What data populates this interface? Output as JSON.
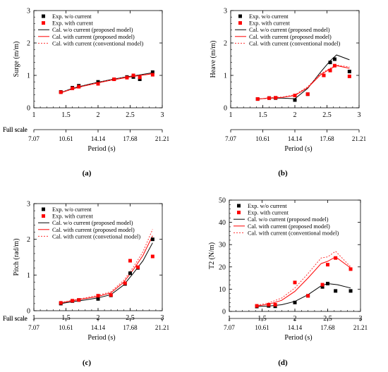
{
  "chart_data": [
    {
      "type": "scatter",
      "panel": "(a)",
      "ylabel": "Surge (m/m)",
      "xlabel": "Period (s)",
      "xlim": [
        1,
        3
      ],
      "ylim": [
        0,
        3
      ],
      "xticks": [
        "1",
        "1.5",
        "2",
        "2.5",
        "3"
      ],
      "yticks": [
        "0",
        "1",
        "2",
        "3"
      ],
      "fullscale_label": "Full scale",
      "fullscale_ticks": [
        "7.07",
        "10.61",
        "14.14",
        "17.68",
        "21.21"
      ],
      "legend": "top-left",
      "series": [
        {
          "name": "Exp. w/o current",
          "kind": "square",
          "color": "#000000",
          "x": [
            1.42,
            1.6,
            1.7,
            2.0,
            2.25,
            2.45,
            2.55,
            2.65,
            2.85
          ],
          "y": [
            0.49,
            0.62,
            0.68,
            0.8,
            0.88,
            0.95,
            0.95,
            0.88,
            1.1
          ]
        },
        {
          "name": "Exp. with current",
          "kind": "square",
          "color": "#ff0000",
          "x": [
            1.42,
            1.6,
            1.7,
            2.0,
            2.25,
            2.45,
            2.55,
            2.65,
            2.85
          ],
          "y": [
            0.48,
            0.6,
            0.65,
            0.74,
            0.88,
            0.93,
            1.0,
            0.94,
            1.02
          ]
        },
        {
          "name": "Cal. w/o current (proposed model)",
          "kind": "line",
          "color": "#000000",
          "dash": "",
          "x": [
            1.42,
            1.6,
            1.8,
            2.0,
            2.2,
            2.4,
            2.6,
            2.85
          ],
          "y": [
            0.47,
            0.6,
            0.7,
            0.79,
            0.87,
            0.94,
            1.0,
            1.08
          ]
        },
        {
          "name": "Cal. with current (proposed model)",
          "kind": "line",
          "color": "#ff0000",
          "dash": "",
          "x": [
            1.42,
            1.6,
            1.8,
            2.0,
            2.2,
            2.4,
            2.6,
            2.85
          ],
          "y": [
            0.46,
            0.58,
            0.68,
            0.77,
            0.85,
            0.92,
            0.98,
            1.05
          ]
        },
        {
          "name": "Cal. with current (conventional model)",
          "kind": "line",
          "color": "#ff3333",
          "dash": "2,2",
          "x": [
            1.42,
            1.6,
            1.8,
            2.0,
            2.2,
            2.4,
            2.6,
            2.85
          ],
          "y": [
            0.47,
            0.59,
            0.69,
            0.78,
            0.86,
            0.93,
            0.99,
            1.06
          ]
        }
      ],
      "caption": "(a)"
    },
    {
      "type": "scatter",
      "panel": "(b)",
      "ylabel": "Heave (m/m)",
      "xlabel": "Period (s)",
      "xlim": [
        1,
        3
      ],
      "ylim": [
        0,
        3
      ],
      "xticks": [
        "1",
        "1.5",
        "2",
        "2.5",
        "3"
      ],
      "yticks": [
        "0",
        "1",
        "2",
        "3"
      ],
      "fullscale_label": "Full scale",
      "fullscale_ticks": [
        "7.07",
        "10.61",
        "14.14",
        "17.68",
        "21.21"
      ],
      "legend": "top-left",
      "series": [
        {
          "name": "Exp. w/o current",
          "kind": "square",
          "color": "#000000",
          "x": [
            1.42,
            1.6,
            1.7,
            2.0,
            2.2,
            2.45,
            2.55,
            2.62,
            2.85
          ],
          "y": [
            0.27,
            0.3,
            0.3,
            0.24,
            0.42,
            1.0,
            1.4,
            1.5,
            1.12
          ]
        },
        {
          "name": "Exp. with current",
          "kind": "square",
          "color": "#ff0000",
          "x": [
            1.42,
            1.6,
            1.7,
            2.0,
            2.2,
            2.45,
            2.55,
            2.62,
            2.85
          ],
          "y": [
            0.27,
            0.3,
            0.31,
            0.38,
            0.42,
            1.0,
            1.15,
            1.3,
            0.97
          ]
        },
        {
          "name": "Cal. w/o current (proposed model)",
          "kind": "line",
          "color": "#000000",
          "dash": "",
          "x": [
            1.42,
            1.6,
            1.8,
            2.0,
            2.2,
            2.4,
            2.55,
            2.65,
            2.85
          ],
          "y": [
            0.27,
            0.3,
            0.3,
            0.28,
            0.6,
            1.1,
            1.45,
            1.63,
            1.48
          ]
        },
        {
          "name": "Cal. with current (proposed model)",
          "kind": "line",
          "color": "#ff0000",
          "dash": "",
          "x": [
            1.42,
            1.6,
            1.8,
            2.0,
            2.2,
            2.4,
            2.55,
            2.65,
            2.85
          ],
          "y": [
            0.27,
            0.3,
            0.32,
            0.38,
            0.62,
            1.02,
            1.2,
            1.3,
            1.22
          ]
        },
        {
          "name": "Cal. with current (conventional model)",
          "kind": "line",
          "color": "#ff3333",
          "dash": "2,2",
          "x": [
            1.42,
            1.6,
            1.8,
            2.0,
            2.2,
            2.4,
            2.55,
            2.65,
            2.85
          ],
          "y": [
            0.27,
            0.31,
            0.33,
            0.4,
            0.65,
            1.05,
            1.22,
            1.32,
            1.26
          ]
        }
      ],
      "caption": "(b)"
    },
    {
      "type": "scatter",
      "panel": "(c)",
      "ylabel": "Pitch (rad/m)",
      "xlabel": "Period (s)",
      "xlim": [
        1,
        3
      ],
      "ylim": [
        0,
        3
      ],
      "xticks": [
        "1",
        "1.5",
        "2",
        "2.5",
        "3"
      ],
      "yticks": [
        "0",
        "1",
        "2",
        "3"
      ],
      "fullscale_label": "Full scale",
      "fullscale_ticks": [
        "7.07",
        "10.61",
        "14.14",
        "17.68",
        "21.21"
      ],
      "legend": "top-left",
      "series": [
        {
          "name": "Exp. w/o current",
          "kind": "square",
          "color": "#000000",
          "x": [
            1.42,
            1.6,
            1.7,
            2.0,
            2.2,
            2.42,
            2.5,
            2.62,
            2.85
          ],
          "y": [
            0.2,
            0.27,
            0.3,
            0.33,
            0.43,
            0.75,
            1.05,
            1.2,
            2.0
          ]
        },
        {
          "name": "Exp. with current",
          "kind": "square",
          "color": "#ff0000",
          "x": [
            1.42,
            1.6,
            1.7,
            2.0,
            2.2,
            2.42,
            2.5,
            2.62,
            2.85
          ],
          "y": [
            0.22,
            0.28,
            0.3,
            0.42,
            0.44,
            0.77,
            1.4,
            1.22,
            1.52
          ]
        },
        {
          "name": "Cal. w/o current (proposed model)",
          "kind": "line",
          "color": "#000000",
          "dash": "",
          "x": [
            1.42,
            1.6,
            1.8,
            2.0,
            2.2,
            2.4,
            2.55,
            2.7,
            2.85
          ],
          "y": [
            0.2,
            0.25,
            0.3,
            0.36,
            0.45,
            0.72,
            1.05,
            1.4,
            1.9
          ]
        },
        {
          "name": "Cal. with current (proposed model)",
          "kind": "line",
          "color": "#ff0000",
          "dash": "",
          "x": [
            1.42,
            1.6,
            1.8,
            2.0,
            2.2,
            2.4,
            2.55,
            2.7,
            2.85
          ],
          "y": [
            0.22,
            0.28,
            0.34,
            0.4,
            0.5,
            0.8,
            1.15,
            1.55,
            2.1
          ]
        },
        {
          "name": "Cal. with current (convetional model)",
          "kind": "line",
          "color": "#ff3333",
          "dash": "2,2",
          "x": [
            1.42,
            1.6,
            1.8,
            2.0,
            2.2,
            2.4,
            2.55,
            2.7,
            2.85
          ],
          "y": [
            0.23,
            0.29,
            0.36,
            0.43,
            0.53,
            0.85,
            1.22,
            1.65,
            2.28
          ]
        }
      ],
      "caption": "(c)"
    },
    {
      "type": "scatter",
      "panel": "(d)",
      "ylabel": "T2 (N/m)",
      "xlabel": "Period (s)",
      "xlim": [
        1,
        3
      ],
      "ylim": [
        0,
        50
      ],
      "xticks": [
        "1",
        "1.5",
        "2",
        "2.5",
        "3"
      ],
      "yticks": [
        "0",
        "10",
        "20",
        "30",
        "40",
        "50"
      ],
      "fullscale_label": "Full scale",
      "fullscale_ticks": [
        "7.07",
        "10.61",
        "14.14",
        "17.68",
        "21.21"
      ],
      "legend": "top-left",
      "series": [
        {
          "name": "Exp. w/o current",
          "kind": "square",
          "color": "#000000",
          "x": [
            1.42,
            1.6,
            1.7,
            2.0,
            2.2,
            2.42,
            2.5,
            2.62,
            2.85
          ],
          "y": [
            2.2,
            2.5,
            2.3,
            4.0,
            7.0,
            11.0,
            12.5,
            9.2,
            9.2
          ]
        },
        {
          "name": "Exp. with current",
          "kind": "square",
          "color": "#ff0000",
          "x": [
            1.42,
            1.6,
            1.7,
            2.0,
            2.2,
            2.42,
            2.5,
            2.62,
            2.85
          ],
          "y": [
            2.5,
            3.0,
            3.0,
            13.0,
            7.0,
            12.0,
            21.0,
            24.0,
            19.0
          ]
        },
        {
          "name": "Cal. w/o current (proposed model)",
          "kind": "line",
          "color": "#000000",
          "dash": "",
          "x": [
            1.42,
            1.6,
            1.8,
            2.0,
            2.2,
            2.4,
            2.5,
            2.65,
            2.85
          ],
          "y": [
            2.2,
            2.4,
            3.0,
            4.5,
            7.5,
            11.5,
            12.5,
            12.0,
            10.5
          ]
        },
        {
          "name": "Cal. with current (proposed model)",
          "kind": "line",
          "color": "#ff0000",
          "dash": "",
          "x": [
            1.42,
            1.6,
            1.8,
            2.0,
            2.2,
            2.4,
            2.5,
            2.62,
            2.85
          ],
          "y": [
            2.5,
            3.2,
            5.0,
            9.0,
            15.0,
            21.5,
            22.5,
            24.5,
            19.5
          ]
        },
        {
          "name": "Cal. with current (conventional model)",
          "kind": "line",
          "color": "#ff3333",
          "dash": "2,2",
          "x": [
            1.42,
            1.6,
            1.8,
            2.0,
            2.2,
            2.4,
            2.5,
            2.62,
            2.85
          ],
          "y": [
            2.8,
            3.8,
            6.0,
            10.5,
            17.0,
            24.0,
            24.5,
            27.0,
            20.0
          ]
        }
      ],
      "caption": "(d)"
    }
  ]
}
